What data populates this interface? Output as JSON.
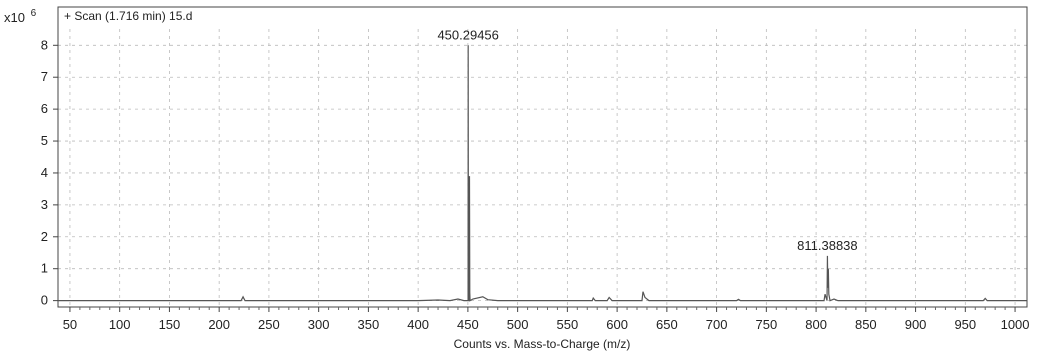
{
  "chart_data": {
    "type": "line",
    "title": "+ Scan (1.716 min) 15.d",
    "y_multiplier": "x10",
    "y_exponent": "6",
    "xlabel": "Counts vs. Mass-to-Charge (m/z)",
    "ylabel": "",
    "xlim": [
      38,
      1012
    ],
    "ylim": [
      -0.2,
      9.2
    ],
    "x_ticks": [
      50,
      100,
      150,
      200,
      250,
      300,
      350,
      400,
      450,
      500,
      550,
      600,
      650,
      700,
      750,
      800,
      850,
      900,
      950,
      1000
    ],
    "x_tick_labels": [
      "50",
      "100",
      "150",
      "200",
      "250",
      "300",
      "350",
      "400",
      "450",
      "500",
      "550",
      "600",
      "650",
      "700",
      "750",
      "800",
      "850",
      "900",
      "950",
      "1000"
    ],
    "y_ticks": [
      0,
      1,
      2,
      3,
      4,
      5,
      6,
      7,
      8
    ],
    "y_tick_labels": [
      "0",
      "1",
      "2",
      "3",
      "4",
      "5",
      "6",
      "7",
      "8"
    ],
    "grid": true,
    "series": [
      {
        "values": [
          [
            38,
            0.0
          ],
          [
            222,
            0.0
          ],
          [
            224,
            0.12
          ],
          [
            226,
            0.0
          ],
          [
            400,
            0.0
          ],
          [
            420,
            0.02
          ],
          [
            432,
            0.0
          ],
          [
            440,
            0.05
          ],
          [
            446,
            0.0
          ],
          [
            450.2,
            0.0
          ],
          [
            450.29456,
            8.0
          ],
          [
            450.5,
            0.3
          ],
          [
            451.0,
            0.0
          ],
          [
            451.4,
            0.0
          ],
          [
            451.6,
            3.9
          ],
          [
            451.9,
            0.25
          ],
          [
            452.2,
            0.0
          ],
          [
            455,
            0.05
          ],
          [
            465,
            0.12
          ],
          [
            470,
            0.03
          ],
          [
            480,
            0.0
          ],
          [
            575,
            0.0
          ],
          [
            576,
            0.08
          ],
          [
            578,
            0.0
          ],
          [
            590,
            0.0
          ],
          [
            592,
            0.1
          ],
          [
            595,
            0.0
          ],
          [
            625,
            0.0
          ],
          [
            626,
            0.28
          ],
          [
            628,
            0.1
          ],
          [
            632,
            0.0
          ],
          [
            720,
            0.0
          ],
          [
            722,
            0.04
          ],
          [
            724,
            0.0
          ],
          [
            808,
            0.0
          ],
          [
            809,
            0.2
          ],
          [
            811.0,
            0.0
          ],
          [
            811.38838,
            1.4
          ],
          [
            811.8,
            0.4
          ],
          [
            812.3,
            1.0
          ],
          [
            812.8,
            0.2
          ],
          [
            814,
            0.0
          ],
          [
            818,
            0.05
          ],
          [
            822,
            0.0
          ],
          [
            968,
            0.0
          ],
          [
            970,
            0.07
          ],
          [
            972,
            0.0
          ],
          [
            1012,
            0.0
          ]
        ]
      }
    ],
    "annotations": [
      {
        "text": "450.29456",
        "x": 450.29456,
        "y": 8.0
      },
      {
        "text": "811.38838",
        "x": 811.38838,
        "y": 1.4
      }
    ]
  }
}
